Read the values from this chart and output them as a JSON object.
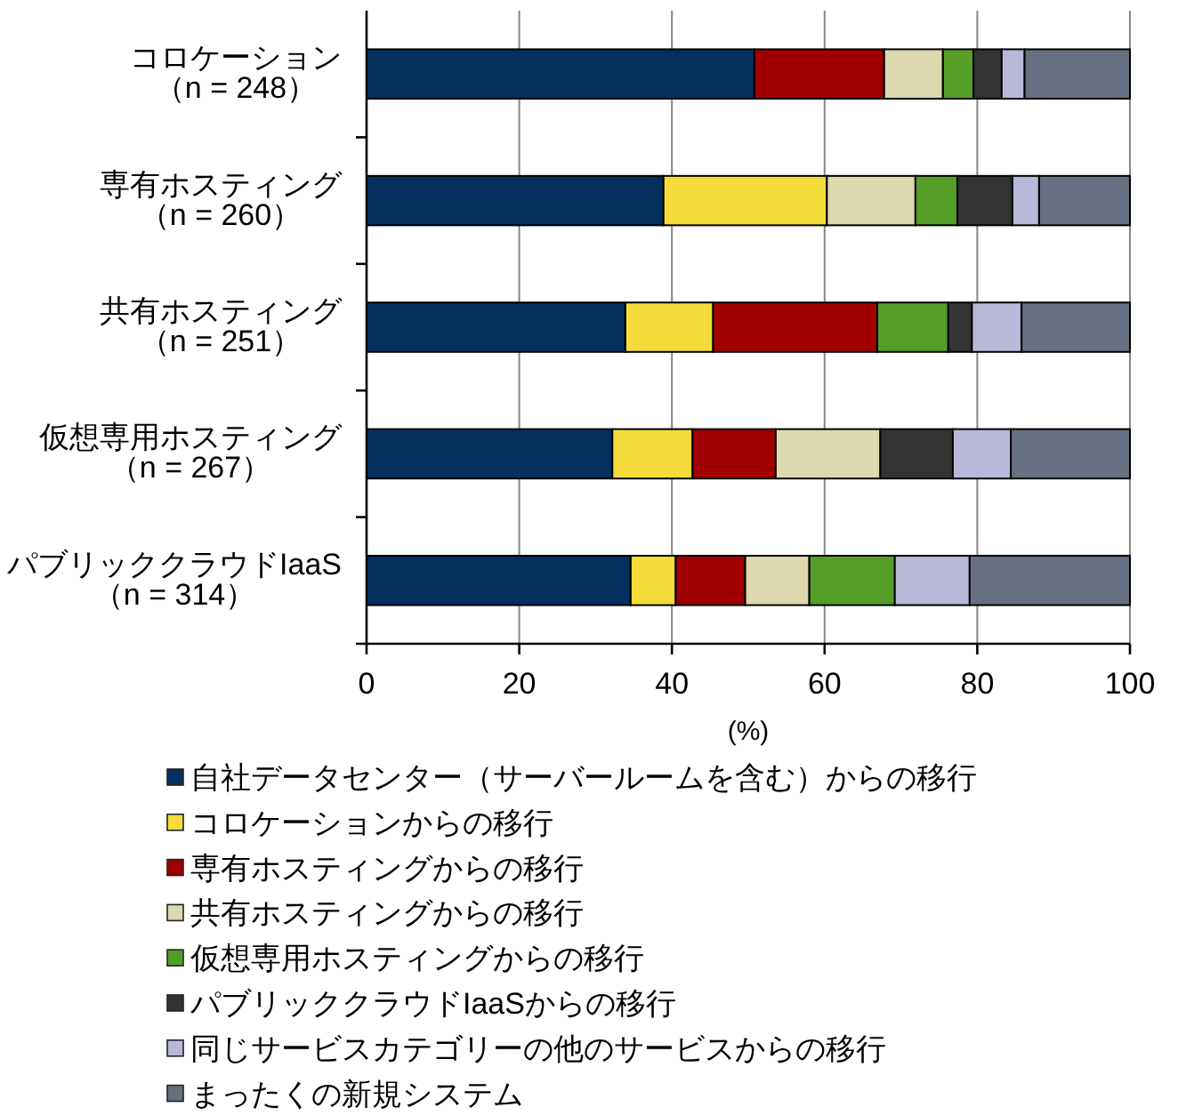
{
  "chart_data": {
    "type": "bar",
    "orientation": "horizontal",
    "stacked": true,
    "categories": [
      "コロケーション（n = 248）",
      "専有ホスティング（n = 260）",
      "共有ホスティング（n = 251）",
      "仮想専用ホスティング（n = 267）",
      "パブリッククラウドIaaS（n = 314）"
    ],
    "series": [
      {
        "name": "自社データセンター（サーバールームを含む）からの移行",
        "color": "#03305f",
        "values": [
          50.8,
          38.9,
          33.9,
          32.2,
          34.6
        ]
      },
      {
        "name": "コロケーションからの移行",
        "color": "#f5dc3a",
        "values": [
          null,
          21.4,
          11.5,
          10.5,
          5.9
        ]
      },
      {
        "name": "専有ホスティングからの移行",
        "color": "#a00000",
        "values": [
          17.0,
          null,
          21.5,
          10.9,
          9.1
        ]
      },
      {
        "name": "共有ホスティングからの移行",
        "color": "#ddd8ae",
        "values": [
          7.7,
          11.6,
          null,
          13.7,
          8.4
        ]
      },
      {
        "name": "仮想専用ホスティングからの移行",
        "color": "#559e28",
        "values": [
          4.0,
          5.5,
          9.3,
          null,
          11.2
        ]
      },
      {
        "name": "パブリッククラウドIaaSからの移行",
        "color": "#333333",
        "values": [
          3.7,
          7.2,
          3.1,
          9.5,
          null
        ]
      },
      {
        "name": "同じサービスカテゴリーの他のサービスからの移行",
        "color": "#b8b8d8",
        "values": [
          3.0,
          3.5,
          6.5,
          7.6,
          9.8
        ]
      },
      {
        "name": "まったくの新規システム",
        "color": "#677080",
        "values": [
          13.8,
          11.9,
          14.2,
          15.6,
          21.0
        ]
      }
    ],
    "xlim": [
      0,
      100
    ],
    "xticks": [
      0,
      20,
      40,
      60,
      80,
      100
    ],
    "xlabel": "(%)",
    "grid": "x",
    "legend": "bottom"
  }
}
